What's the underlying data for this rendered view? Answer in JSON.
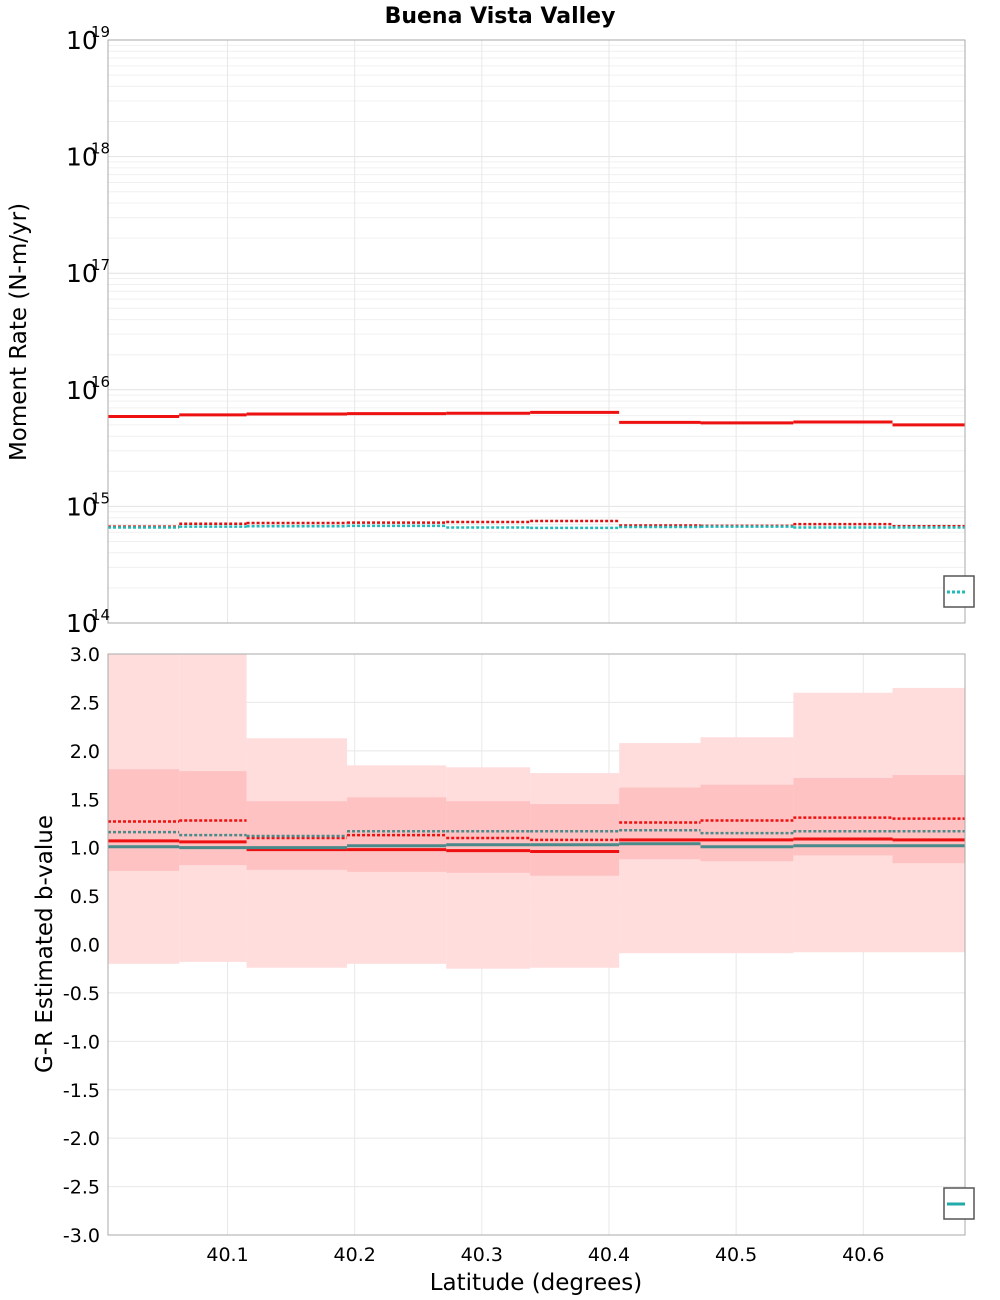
{
  "title": "Buena Vista Valley",
  "chart_data": [
    {
      "type": "line",
      "subtype": "step",
      "ylabel": "Moment Rate (N-m/yr)",
      "yscale": "log",
      "ylim_exponents": [
        14,
        19
      ],
      "ytick_base": "10",
      "ytick_exponents": [
        "14",
        "15",
        "16",
        "17",
        "18",
        "19"
      ],
      "xlim": [
        40.006,
        40.68
      ],
      "grid": true,
      "legend": "bottom-right (clipped)",
      "edges": [
        40.006,
        40.062,
        40.115,
        40.194,
        40.272,
        40.338,
        40.408,
        40.472,
        40.545,
        40.623,
        40.68
      ],
      "series": [
        {
          "color": "#ee1111",
          "style": "solid",
          "values": [
            5900000000000000.0,
            6100000000000000.0,
            6200000000000000.0,
            6250000000000000.0,
            6300000000000000.0,
            6400000000000000.0,
            5250000000000000.0,
            5200000000000000.0,
            5300000000000000.0,
            5000000000000000.0
          ]
        },
        {
          "color": "#dd1111",
          "style": "dotted",
          "values": [
            670000000000000.0,
            710000000000000.0,
            720000000000000.0,
            725000000000000.0,
            735000000000000.0,
            750000000000000.0,
            685000000000000.0,
            680000000000000.0,
            705000000000000.0,
            675000000000000.0
          ]
        },
        {
          "color": "#22bbbb",
          "style": "dotted",
          "values": [
            660000000000000.0,
            670000000000000.0,
            675000000000000.0,
            680000000000000.0,
            660000000000000.0,
            655000000000000.0,
            665000000000000.0,
            670000000000000.0,
            660000000000000.0,
            660000000000000.0
          ]
        }
      ]
    },
    {
      "type": "line",
      "subtype": "step",
      "xlabel": "Latitude (degrees)",
      "ylabel": "G-R Estimated b-value",
      "ylim": [
        -3.0,
        3.0
      ],
      "yticks": [
        "-3.0",
        "-2.5",
        "-2.0",
        "-1.5",
        "-1.0",
        "-0.5",
        "0.0",
        "0.5",
        "1.0",
        "1.5",
        "2.0",
        "2.5",
        "3.0"
      ],
      "xlim": [
        40.006,
        40.68
      ],
      "xticks": [
        "40.1",
        "40.2",
        "40.3",
        "40.4",
        "40.5",
        "40.6"
      ],
      "grid": true,
      "legend": "bottom-right (clipped)",
      "edges": [
        40.006,
        40.062,
        40.115,
        40.194,
        40.272,
        40.338,
        40.408,
        40.472,
        40.545,
        40.623,
        40.68
      ],
      "bands": [
        {
          "color": "#ffdddd",
          "lower": [
            -0.2,
            -0.18,
            -0.24,
            -0.2,
            -0.25,
            -0.24,
            -0.09,
            -0.09,
            -0.08,
            -0.08
          ],
          "upper": [
            3.0,
            3.0,
            2.13,
            1.85,
            1.83,
            1.77,
            2.08,
            2.14,
            2.6,
            2.65
          ]
        },
        {
          "color": "#ffc2c2",
          "lower": [
            0.76,
            0.82,
            0.77,
            0.75,
            0.74,
            0.71,
            0.88,
            0.86,
            0.92,
            0.84
          ],
          "upper": [
            1.81,
            1.79,
            1.48,
            1.52,
            1.48,
            1.45,
            1.62,
            1.65,
            1.72,
            1.75
          ]
        }
      ],
      "series": [
        {
          "color": "#ee1111",
          "style": "dotted",
          "values": [
            1.27,
            1.28,
            1.1,
            1.13,
            1.1,
            1.08,
            1.26,
            1.28,
            1.31,
            1.3
          ]
        },
        {
          "color": "#4a8a8a",
          "style": "dotted",
          "values": [
            1.16,
            1.13,
            1.12,
            1.17,
            1.17,
            1.17,
            1.18,
            1.15,
            1.17,
            1.17
          ]
        },
        {
          "color": "#ee1111",
          "style": "solid",
          "values": [
            1.07,
            1.06,
            0.98,
            0.98,
            0.97,
            0.96,
            1.08,
            1.08,
            1.09,
            1.08
          ]
        },
        {
          "color": "#4a8a8a",
          "style": "solid",
          "values": [
            1.01,
            1.0,
            1.0,
            1.02,
            1.03,
            1.03,
            1.04,
            1.01,
            1.02,
            1.02
          ]
        }
      ]
    }
  ]
}
